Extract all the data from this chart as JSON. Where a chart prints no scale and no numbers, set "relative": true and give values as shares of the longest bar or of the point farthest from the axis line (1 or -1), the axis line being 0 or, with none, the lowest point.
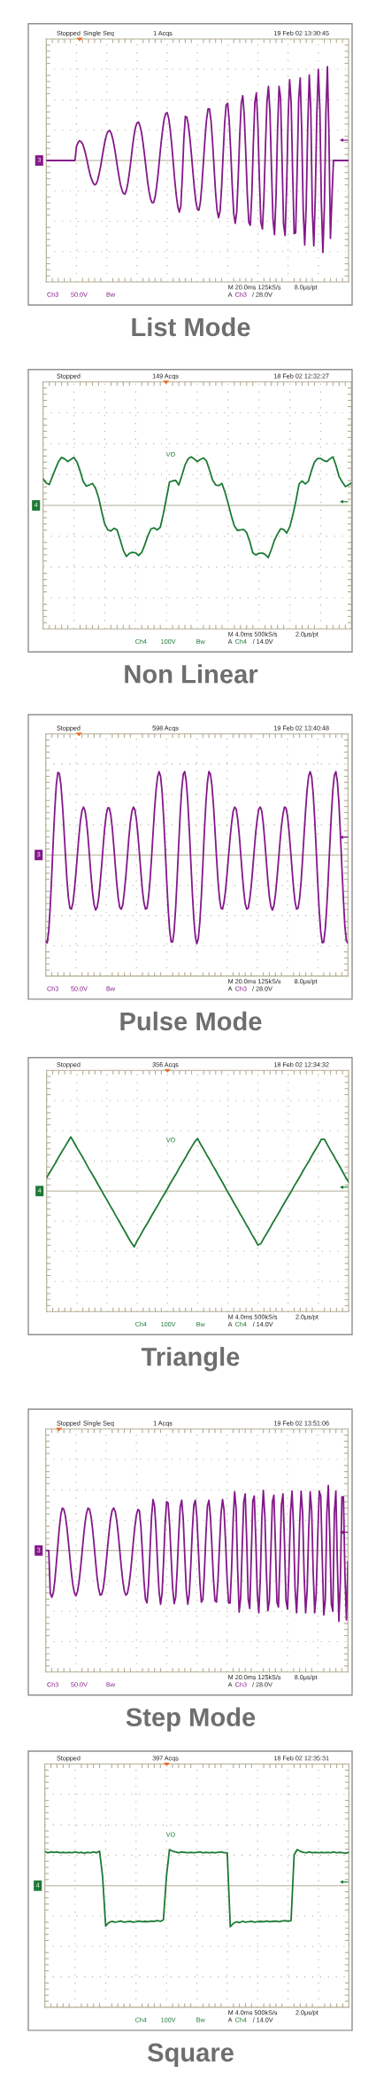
{
  "chart_data": [
    {
      "type": "line",
      "title": "List Mode",
      "relative": true,
      "grid": true,
      "tick_labels": false,
      "annotations": [
        "Stopped",
        "Single Seq",
        "1 Acqs",
        "19 Feb 02 13:30:45",
        "3",
        "M 20.0ms 125kS/s",
        "8.0μs/pt",
        "Ch3",
        "50.0V",
        "Bw",
        "A",
        "Ch3",
        "/ 28.0V"
      ],
      "categories": [
        null,
        null,
        null,
        null,
        null,
        null,
        null,
        null,
        null,
        null,
        null,
        null,
        null,
        null,
        null,
        null,
        null,
        null,
        null,
        null,
        null,
        null,
        null,
        null,
        null,
        null,
        null,
        null,
        null,
        null,
        null,
        null,
        null,
        null,
        null,
        null,
        null,
        null,
        null,
        null,
        null,
        null,
        null,
        null,
        null,
        null,
        null,
        null,
        null,
        null,
        null,
        null,
        null,
        null,
        null,
        null,
        null,
        null,
        null,
        null,
        null,
        null,
        null,
        null,
        null,
        null,
        null,
        null,
        null,
        null,
        null,
        null,
        null,
        null,
        null,
        null,
        null,
        null,
        null,
        null,
        null,
        null,
        null,
        null,
        null,
        null,
        null,
        null,
        null,
        null,
        null,
        null,
        null,
        null,
        null,
        null,
        null,
        null,
        null,
        null,
        null,
        null,
        null,
        null,
        null,
        null,
        null,
        null,
        null,
        null,
        null,
        null,
        null,
        null,
        null,
        null,
        null,
        null,
        null,
        null,
        null,
        null,
        null,
        null,
        null,
        null,
        null,
        null,
        null,
        null,
        null,
        null,
        null,
        null,
        null,
        null,
        null,
        null,
        null,
        null,
        null,
        null,
        null,
        null,
        null,
        null,
        null,
        null,
        null,
        null,
        null,
        null,
        null,
        null,
        null,
        null,
        null,
        null,
        null,
        null,
        null,
        null,
        null,
        null,
        null,
        null,
        null,
        null,
        null,
        null,
        null,
        null,
        null,
        null,
        null,
        null,
        null,
        null,
        null,
        null,
        null,
        null,
        null,
        null,
        null,
        null,
        null,
        null,
        null,
        null,
        null,
        null,
        null,
        null,
        null,
        null,
        null,
        null,
        null,
        null,
        null
      ],
      "series": [
        {
          "color": "#84188a",
          "values": [
            0,
            0,
            0,
            0,
            0,
            0,
            0,
            0,
            0,
            0,
            0,
            0,
            0,
            0,
            0,
            0,
            0,
            0,
            0,
            0,
            0.15,
            0.19,
            0.21,
            0.2,
            0.18,
            0.13,
            0.07,
            0.0,
            -0.08,
            -0.15,
            -0.2,
            -0.24,
            -0.26,
            -0.25,
            -0.21,
            -0.14,
            -0.06,
            0.04,
            0.13,
            0.22,
            0.28,
            0.31,
            0.32,
            0.29,
            0.23,
            0.15,
            0.05,
            -0.06,
            -0.16,
            -0.25,
            -0.31,
            -0.35,
            -0.36,
            -0.32,
            -0.24,
            -0.13,
            0.0,
            0.14,
            0.26,
            0.35,
            0.4,
            0.41,
            0.37,
            0.3,
            0.19,
            0.06,
            -0.08,
            -0.22,
            -0.33,
            -0.41,
            -0.45,
            -0.45,
            -0.39,
            -0.28,
            -0.14,
            0.03,
            0.19,
            0.33,
            0.44,
            0.5,
            0.51,
            0.45,
            0.33,
            0.17,
            -0.02,
            -0.21,
            -0.37,
            -0.49,
            -0.55,
            -0.49,
            -0.18,
            0.22,
            0.47,
            0.46,
            0.38,
            0.24,
            0.07,
            -0.12,
            -0.3,
            -0.44,
            -0.52,
            -0.53,
            -0.44,
            -0.25,
            -0.01,
            0.23,
            0.43,
            0.55,
            0.55,
            0.42,
            0.2,
            -0.07,
            -0.34,
            -0.53,
            -0.61,
            -0.54,
            -0.29,
            0.06,
            0.39,
            0.59,
            0.61,
            0.43,
            0.11,
            -0.26,
            -0.56,
            -0.67,
            -0.55,
            -0.18,
            0.27,
            0.61,
            0.69,
            0.48,
            0.08,
            -0.36,
            -0.66,
            -0.69,
            -0.36,
            0.18,
            0.62,
            0.72,
            0.38,
            -0.2,
            -0.66,
            -0.73,
            -0.4,
            0.14,
            0.62,
            0.79,
            0.51,
            -0.09,
            -0.63,
            -0.79,
            -0.39,
            0.31,
            0.79,
            0.67,
            0.0,
            -0.68,
            -0.8,
            -0.3,
            0.44,
            0.86,
            0.62,
            -0.14,
            -0.78,
            -0.77,
            -0.1,
            0.66,
            0.88,
            0.32,
            -0.54,
            -0.9,
            -0.47,
            0.37,
            0.91,
            0.55,
            -0.53,
            -0.91,
            -0.37,
            0.5,
            0.97,
            0.55,
            -0.45,
            -0.98,
            -0.49,
            0.51,
            1.0,
            0.27,
            -0.83,
            -0.4,
            0,
            0,
            0,
            0,
            0,
            0,
            0,
            0,
            0,
            0,
            0
          ]
        }
      ]
    },
    {
      "type": "line",
      "title": "Non Linear",
      "relative": true,
      "grid": true,
      "tick_labels": false,
      "annotations": [
        "Stopped",
        "149 Acqs",
        "18 Feb 02 12:32:27",
        "VO",
        "4",
        "M 4.0ms 500kS/s",
        "2.0μs/pt",
        "Ch4",
        "100V",
        "Bw",
        "A",
        "Ch4",
        "/ 14.0V"
      ],
      "categories": [
        null,
        null,
        null,
        null,
        null,
        null,
        null,
        null,
        null,
        null,
        null,
        null,
        null,
        null,
        null,
        null,
        null,
        null,
        null,
        null,
        null,
        null,
        null,
        null,
        null,
        null,
        null,
        null,
        null,
        null,
        null,
        null,
        null,
        null,
        null,
        null,
        null,
        null,
        null,
        null,
        null,
        null,
        null,
        null,
        null,
        null,
        null,
        null,
        null,
        null,
        null,
        null,
        null,
        null,
        null,
        null,
        null,
        null,
        null,
        null,
        null,
        null,
        null,
        null,
        null,
        null,
        null,
        null,
        null,
        null,
        null,
        null,
        null,
        null,
        null,
        null,
        null,
        null,
        null,
        null,
        null,
        null,
        null,
        null,
        null,
        null,
        null,
        null,
        null,
        null,
        null,
        null,
        null,
        null,
        null,
        null,
        null,
        null,
        null,
        null,
        null
      ],
      "series": [
        {
          "color": "#1d7a35",
          "values": [
            0.51,
            0.43,
            0.4,
            0.55,
            0.7,
            0.84,
            0.92,
            0.89,
            0.84,
            0.88,
            0.92,
            0.83,
            0.66,
            0.46,
            0.37,
            0.39,
            0.42,
            0.33,
            0.15,
            -0.12,
            -0.36,
            -0.47,
            -0.49,
            -0.44,
            -0.47,
            -0.66,
            -0.86,
            -0.98,
            -0.92,
            -0.9,
            -0.91,
            -0.96,
            -0.9,
            -0.75,
            -0.58,
            -0.45,
            -0.43,
            -0.47,
            -0.42,
            -0.16,
            0.14,
            0.45,
            0.47,
            0.48,
            0.39,
            0.57,
            0.77,
            0.89,
            0.93,
            0.89,
            0.84,
            0.88,
            0.91,
            0.85,
            0.67,
            0.48,
            0.39,
            0.38,
            0.42,
            0.25,
            0.04,
            -0.19,
            -0.39,
            -0.48,
            -0.47,
            -0.46,
            -0.52,
            -0.69,
            -0.91,
            -0.95,
            -0.92,
            -0.91,
            -0.94,
            -1.0,
            -0.85,
            -0.67,
            -0.55,
            -0.45,
            -0.46,
            -0.53,
            -0.41,
            -0.18,
            0.09,
            0.41,
            0.47,
            0.41,
            0.46,
            0.66,
            0.83,
            0.9,
            0.9,
            0.86,
            0.84,
            0.89,
            0.93,
            0.76,
            0.55,
            0.45,
            0.36,
            0.39,
            0.43
          ]
        }
      ]
    },
    {
      "type": "line",
      "title": "Pulse Mode",
      "relative": true,
      "grid": true,
      "tick_labels": false,
      "annotations": [
        "Stopped",
        "598 Acqs",
        "19 Feb 02 13:40:48",
        "3",
        "M 20.0ms 125kS/s",
        "8.0μs/pt",
        "Ch3",
        "50.0V",
        "Bw",
        "A",
        "Ch3",
        "/ 28.0V"
      ],
      "categories": [
        null,
        null,
        null,
        null,
        null,
        null,
        null,
        null,
        null,
        null,
        null,
        null,
        null,
        null,
        null,
        null,
        null,
        null,
        null,
        null,
        null,
        null,
        null,
        null,
        null,
        null,
        null,
        null,
        null,
        null,
        null,
        null,
        null,
        null,
        null,
        null,
        null,
        null,
        null,
        null,
        null,
        null,
        null,
        null,
        null,
        null,
        null,
        null,
        null,
        null,
        null,
        null,
        null,
        null,
        null,
        null,
        null,
        null,
        null,
        null,
        null,
        null,
        null,
        null,
        null,
        null,
        null,
        null,
        null,
        null,
        null,
        null,
        null,
        null,
        null,
        null,
        null,
        null,
        null,
        null,
        null,
        null,
        null,
        null,
        null,
        null,
        null,
        null,
        null,
        null,
        null,
        null,
        null,
        null,
        null,
        null,
        null,
        null,
        null,
        null,
        null,
        null,
        null,
        null,
        null,
        null,
        null,
        null,
        null,
        null,
        null,
        null,
        null,
        null,
        null,
        null,
        null,
        null,
        null,
        null,
        null,
        null,
        null,
        null,
        null,
        null,
        null,
        null,
        null,
        null,
        null,
        null,
        null,
        null,
        null,
        null,
        null,
        null,
        null,
        null,
        null,
        null,
        null,
        null,
        null,
        null,
        null,
        null,
        null,
        null,
        null,
        null,
        null,
        null,
        null,
        null,
        null,
        null,
        null,
        null,
        null,
        null,
        null,
        null,
        null,
        null,
        null,
        null,
        null,
        null,
        null,
        null,
        null,
        null,
        null,
        null,
        null,
        null,
        null,
        null,
        null,
        null,
        null,
        null,
        null,
        null,
        null,
        null,
        null,
        null,
        null,
        null,
        null,
        null,
        null,
        null,
        null,
        null,
        null,
        null,
        null
      ],
      "series": [
        {
          "color": "#84188a",
          "values": [
            -0.97,
            -0.99,
            -0.85,
            -0.58,
            -0.22,
            0.17,
            0.52,
            0.79,
            0.93,
            0.92,
            0.8,
            0.58,
            0.31,
            0.01,
            -0.27,
            -0.48,
            -0.6,
            -0.61,
            -0.54,
            -0.39,
            -0.2,
            0.01,
            0.22,
            0.39,
            0.5,
            0.54,
            0.5,
            0.38,
            0.2,
            -0.02,
            -0.24,
            -0.43,
            -0.56,
            -0.62,
            -0.59,
            -0.49,
            -0.32,
            -0.12,
            0.1,
            0.3,
            0.45,
            0.53,
            0.53,
            0.46,
            0.31,
            0.11,
            -0.11,
            -0.32,
            -0.49,
            -0.59,
            -0.61,
            -0.56,
            -0.42,
            -0.24,
            -0.03,
            0.19,
            0.37,
            0.49,
            0.54,
            0.51,
            0.4,
            0.23,
            0.02,
            -0.2,
            -0.4,
            -0.54,
            -0.61,
            -0.6,
            -0.48,
            -0.29,
            -0.04,
            0.24,
            0.51,
            0.73,
            0.88,
            0.94,
            0.89,
            0.71,
            0.43,
            0.09,
            -0.27,
            -0.6,
            -0.85,
            -0.98,
            -0.98,
            -0.85,
            -0.59,
            -0.25,
            0.12,
            0.47,
            0.74,
            0.91,
            0.94,
            0.83,
            0.6,
            0.29,
            -0.07,
            -0.42,
            -0.72,
            -0.92,
            -1.0,
            -0.94,
            -0.75,
            -0.46,
            -0.1,
            0.27,
            0.59,
            0.82,
            0.94,
            0.91,
            0.78,
            0.56,
            0.28,
            -0.02,
            -0.29,
            -0.49,
            -0.6,
            -0.61,
            -0.53,
            -0.4,
            -0.21,
            -0.01,
            0.19,
            0.36,
            0.49,
            0.54,
            0.52,
            0.41,
            0.24,
            0.02,
            -0.2,
            -0.4,
            -0.55,
            -0.61,
            -0.6,
            -0.5,
            -0.35,
            -0.15,
            0.06,
            0.26,
            0.41,
            0.52,
            0.54,
            0.49,
            0.35,
            0.15,
            -0.07,
            -0.29,
            -0.47,
            -0.58,
            -0.62,
            -0.57,
            -0.45,
            -0.27,
            -0.07,
            0.14,
            0.33,
            0.46,
            0.54,
            0.53,
            0.44,
            0.27,
            0.06,
            -0.16,
            -0.37,
            -0.53,
            -0.61,
            -0.6,
            -0.49,
            -0.3,
            -0.04,
            0.24,
            0.51,
            0.74,
            0.89,
            0.94,
            0.88,
            0.69,
            0.4,
            0.05,
            -0.31,
            -0.63,
            -0.87,
            -0.99,
            -0.98,
            -0.83,
            -0.58,
            -0.25,
            0.11,
            0.45,
            0.73,
            0.9,
            0.94,
            0.83,
            0.59,
            0.24,
            -0.14,
            -0.51,
            -0.81,
            -0.97,
            -0.99
          ]
        }
      ]
    },
    {
      "type": "line",
      "title": "Triangle",
      "relative": true,
      "grid": true,
      "tick_labels": false,
      "annotations": [
        "Stopped",
        "356 Acqs",
        "18 Feb 02 12:34:32",
        "VO",
        "4",
        "M 4.0ms 500kS/s",
        "2.0μs/pt",
        "Ch4",
        "100V",
        "Bw",
        "A",
        "Ch4",
        "/ 14.0V"
      ],
      "categories": [
        null,
        null,
        null,
        null,
        null,
        null,
        null,
        null,
        null,
        null,
        null,
        null,
        null,
        null,
        null,
        null,
        null,
        null,
        null,
        null,
        null,
        null,
        null,
        null,
        null,
        null,
        null,
        null,
        null,
        null,
        null,
        null,
        null,
        null,
        null,
        null,
        null,
        null,
        null,
        null,
        null,
        null,
        null,
        null,
        null,
        null,
        null,
        null,
        null,
        null,
        null,
        null,
        null,
        null,
        null,
        null,
        null,
        null,
        null,
        null,
        null,
        null,
        null,
        null,
        null,
        null,
        null,
        null,
        null,
        null,
        null,
        null,
        null,
        null,
        null,
        null,
        null,
        null,
        null,
        null,
        null,
        null,
        null,
        null,
        null,
        null,
        null,
        null,
        null,
        null,
        null,
        null,
        null,
        null,
        null,
        null,
        null,
        null,
        null,
        null,
        null
      ],
      "series": [
        {
          "color": "#1d7a35",
          "values": [
            0.24,
            0.33,
            0.42,
            0.51,
            0.61,
            0.7,
            0.79,
            0.88,
            0.97,
            0.88,
            0.78,
            0.69,
            0.6,
            0.5,
            0.4,
            0.31,
            0.22,
            0.12,
            0.03,
            -0.07,
            -0.16,
            -0.26,
            -0.35,
            -0.45,
            -0.54,
            -0.64,
            -0.73,
            -0.83,
            -0.92,
            -1.0,
            -0.89,
            -0.8,
            -0.7,
            -0.61,
            -0.52,
            -0.42,
            -0.33,
            -0.24,
            -0.14,
            -0.05,
            0.04,
            0.14,
            0.23,
            0.32,
            0.42,
            0.51,
            0.6,
            0.7,
            0.79,
            0.88,
            0.94,
            0.84,
            0.75,
            0.65,
            0.56,
            0.46,
            0.37,
            0.27,
            0.18,
            0.08,
            -0.02,
            -0.11,
            -0.21,
            -0.3,
            -0.4,
            -0.49,
            -0.59,
            -0.68,
            -0.78,
            -0.87,
            -0.97,
            -0.94,
            -0.84,
            -0.75,
            -0.66,
            -0.56,
            -0.47,
            -0.38,
            -0.28,
            -0.19,
            -0.1,
            -0.01,
            0.09,
            0.18,
            0.27,
            0.37,
            0.46,
            0.55,
            0.65,
            0.74,
            0.83,
            0.93,
            0.93,
            0.83,
            0.73,
            0.64,
            0.54,
            0.45,
            0.35,
            0.25,
            0.16
          ]
        }
      ]
    },
    {
      "type": "line",
      "title": "Step Mode",
      "relative": true,
      "grid": true,
      "tick_labels": false,
      "annotations": [
        "Stopped",
        "Single Seq",
        "1 Acqs",
        "19 Feb 02 13:51:06",
        "3",
        "M 20.0ms 125kS/s",
        "8.0μs/pt",
        "Ch3",
        "50.0V",
        "Bw",
        "A",
        "Ch3",
        "/ 28.0V"
      ],
      "categories": [
        null,
        null,
        null,
        null,
        null,
        null,
        null,
        null,
        null,
        null,
        null,
        null,
        null,
        null,
        null,
        null,
        null,
        null,
        null,
        null,
        null,
        null,
        null,
        null,
        null,
        null,
        null,
        null,
        null,
        null,
        null,
        null,
        null,
        null,
        null,
        null,
        null,
        null,
        null,
        null,
        null,
        null,
        null,
        null,
        null,
        null,
        null,
        null,
        null,
        null,
        null,
        null,
        null,
        null,
        null,
        null,
        null,
        null,
        null,
        null,
        null,
        null,
        null,
        null,
        null,
        null,
        null,
        null,
        null,
        null,
        null,
        null,
        null,
        null,
        null,
        null,
        null,
        null,
        null,
        null,
        null,
        null,
        null,
        null,
        null,
        null,
        null,
        null,
        null,
        null,
        null,
        null,
        null,
        null,
        null,
        null,
        null,
        null,
        null,
        null,
        null,
        null,
        null,
        null,
        null,
        null,
        null,
        null,
        null,
        null,
        null,
        null,
        null,
        null,
        null,
        null,
        null,
        null,
        null,
        null,
        null,
        null,
        null,
        null,
        null,
        null,
        null,
        null,
        null,
        null,
        null,
        null,
        null,
        null,
        null,
        null,
        null,
        null,
        null,
        null,
        null,
        null,
        null,
        null,
        null,
        null,
        null,
        null,
        null,
        null,
        null,
        null,
        null,
        null,
        null,
        null,
        null,
        null,
        null,
        null,
        null,
        null,
        null,
        null,
        null,
        null,
        null,
        null,
        null,
        null,
        null,
        null,
        null,
        null,
        null,
        null,
        null,
        null,
        null,
        null,
        null,
        null,
        null,
        null,
        null,
        null,
        null,
        null,
        null,
        null,
        null,
        null,
        null,
        null,
        null,
        null,
        null,
        null,
        null,
        null,
        null
      ],
      "series": [
        {
          "color": "#84188a",
          "values": [
            0,
            0,
            0,
            -0.6,
            -0.66,
            -0.6,
            -0.43,
            -0.19,
            0.07,
            0.32,
            0.51,
            0.6,
            0.58,
            0.49,
            0.33,
            0.12,
            -0.1,
            -0.32,
            -0.49,
            -0.6,
            -0.64,
            -0.58,
            -0.45,
            -0.26,
            -0.04,
            0.19,
            0.39,
            0.53,
            0.6,
            0.58,
            0.48,
            0.3,
            0.08,
            -0.16,
            -0.38,
            -0.54,
            -0.63,
            -0.62,
            -0.54,
            -0.38,
            -0.17,
            0.06,
            0.28,
            0.46,
            0.57,
            0.6,
            0.55,
            0.42,
            0.23,
            0.0,
            -0.23,
            -0.43,
            -0.57,
            -0.63,
            -0.61,
            -0.5,
            -0.33,
            -0.11,
            0.13,
            0.34,
            0.5,
            0.58,
            0.56,
            0.33,
            -0.04,
            -0.43,
            -0.69,
            -0.74,
            -0.49,
            -0.01,
            0.47,
            0.72,
            0.63,
            0.29,
            -0.18,
            -0.58,
            -0.76,
            -0.6,
            -0.15,
            0.37,
            0.69,
            0.67,
            0.36,
            -0.1,
            -0.53,
            -0.75,
            -0.66,
            -0.27,
            0.23,
            0.62,
            0.71,
            0.44,
            -0.07,
            -0.55,
            -0.76,
            -0.61,
            -0.21,
            0.28,
            0.64,
            0.71,
            0.48,
            0.02,
            -0.45,
            -0.73,
            -0.69,
            -0.31,
            0.22,
            0.63,
            0.71,
            0.48,
            0.05,
            -0.41,
            -0.71,
            -0.73,
            -0.42,
            0.07,
            0.52,
            0.72,
            0.57,
            0.13,
            -0.39,
            -0.74,
            -0.74,
            -0.26,
            0.42,
            0.83,
            0.59,
            -0.27,
            -0.87,
            -0.67,
            0.02,
            0.68,
            0.8,
            0.14,
            -0.69,
            -0.82,
            -0.11,
            0.7,
            0.77,
            0.16,
            -0.6,
            -0.88,
            -0.39,
            0.44,
            0.85,
            0.49,
            -0.29,
            -0.85,
            -0.71,
            0.0,
            0.69,
            0.78,
            0.07,
            -0.73,
            -0.8,
            -0.12,
            0.65,
            0.8,
            0.11,
            -0.71,
            -0.83,
            -0.23,
            0.54,
            0.84,
            0.33,
            -0.54,
            -0.88,
            -0.43,
            0.36,
            0.84,
            0.53,
            -0.35,
            -0.88,
            -0.56,
            0.27,
            0.83,
            0.56,
            -0.31,
            -0.88,
            -0.6,
            0.19,
            0.84,
            0.77,
            -0.11,
            -0.91,
            -0.7,
            0.51,
            0.92,
            0.19,
            -0.76,
            -0.86,
            0.53,
            0.84,
            -0.18,
            -1.0,
            -0.42,
            0.76,
            0.76,
            -0.33,
            -0.98,
            -0.16
          ]
        }
      ]
    },
    {
      "type": "line",
      "title": "Square",
      "relative": true,
      "grid": true,
      "tick_labels": false,
      "annotations": [
        "Stopped",
        "397 Acqs",
        "18 Feb 02 12:35:31",
        "VO",
        "4",
        "M 4.0ms 500kS/s",
        "2.0μs/pt",
        "Ch4",
        "100V",
        "Bw",
        "A",
        "Ch4",
        "/ 14.0V"
      ],
      "categories": [
        null,
        null,
        null,
        null,
        null,
        null,
        null,
        null,
        null,
        null,
        null,
        null,
        null,
        null,
        null,
        null,
        null,
        null,
        null,
        null,
        null,
        null,
        null,
        null,
        null,
        null,
        null,
        null,
        null,
        null,
        null,
        null,
        null,
        null,
        null,
        null,
        null,
        null,
        null,
        null,
        null,
        null,
        null,
        null,
        null,
        null,
        null,
        null,
        null,
        null,
        null,
        null,
        null,
        null,
        null,
        null,
        null,
        null,
        null,
        null,
        null,
        null,
        null,
        null,
        null,
        null,
        null,
        null,
        null,
        null,
        null,
        null,
        null,
        null,
        null,
        null,
        null,
        null,
        null,
        null,
        null,
        null,
        null,
        null,
        null,
        null,
        null,
        null,
        null,
        null,
        null,
        null,
        null,
        null,
        null,
        null,
        null,
        null,
        null,
        null,
        null
      ],
      "series": [
        {
          "color": "#1d7a35",
          "values": [
            0.83,
            0.8,
            0.82,
            0.81,
            0.82,
            0.8,
            0.81,
            0.8,
            0.81,
            0.8,
            0.82,
            0.8,
            0.81,
            0.79,
            0.81,
            0.8,
            0.82,
            0.8,
            0.84,
            0.22,
            -0.98,
            -0.9,
            -0.87,
            -0.89,
            -0.88,
            -0.86,
            -0.89,
            -0.88,
            -0.87,
            -0.89,
            -0.88,
            -0.86,
            -0.88,
            -0.87,
            -0.88,
            -0.86,
            -0.87,
            -0.85,
            -0.87,
            -0.83,
            0.22,
            0.88,
            0.84,
            0.82,
            0.8,
            0.82,
            0.81,
            0.8,
            0.81,
            0.8,
            0.81,
            0.82,
            0.8,
            0.81,
            0.8,
            0.81,
            0.8,
            0.81,
            0.82,
            0.8,
            0.8,
            -1.0,
            -0.92,
            -0.88,
            -0.9,
            -0.87,
            -0.89,
            -0.88,
            -0.87,
            -0.89,
            -0.88,
            -0.87,
            -0.88,
            -0.86,
            -0.88,
            -0.87,
            -0.86,
            -0.88,
            -0.86,
            -0.85,
            -0.87,
            -0.85,
            0.75,
            0.88,
            0.84,
            0.81,
            0.8,
            0.82,
            0.8,
            0.81,
            0.8,
            0.81,
            0.8,
            0.81,
            0.8,
            0.82,
            0.8,
            0.81,
            0.8,
            0.79,
            0.81
          ]
        }
      ]
    }
  ]
}
